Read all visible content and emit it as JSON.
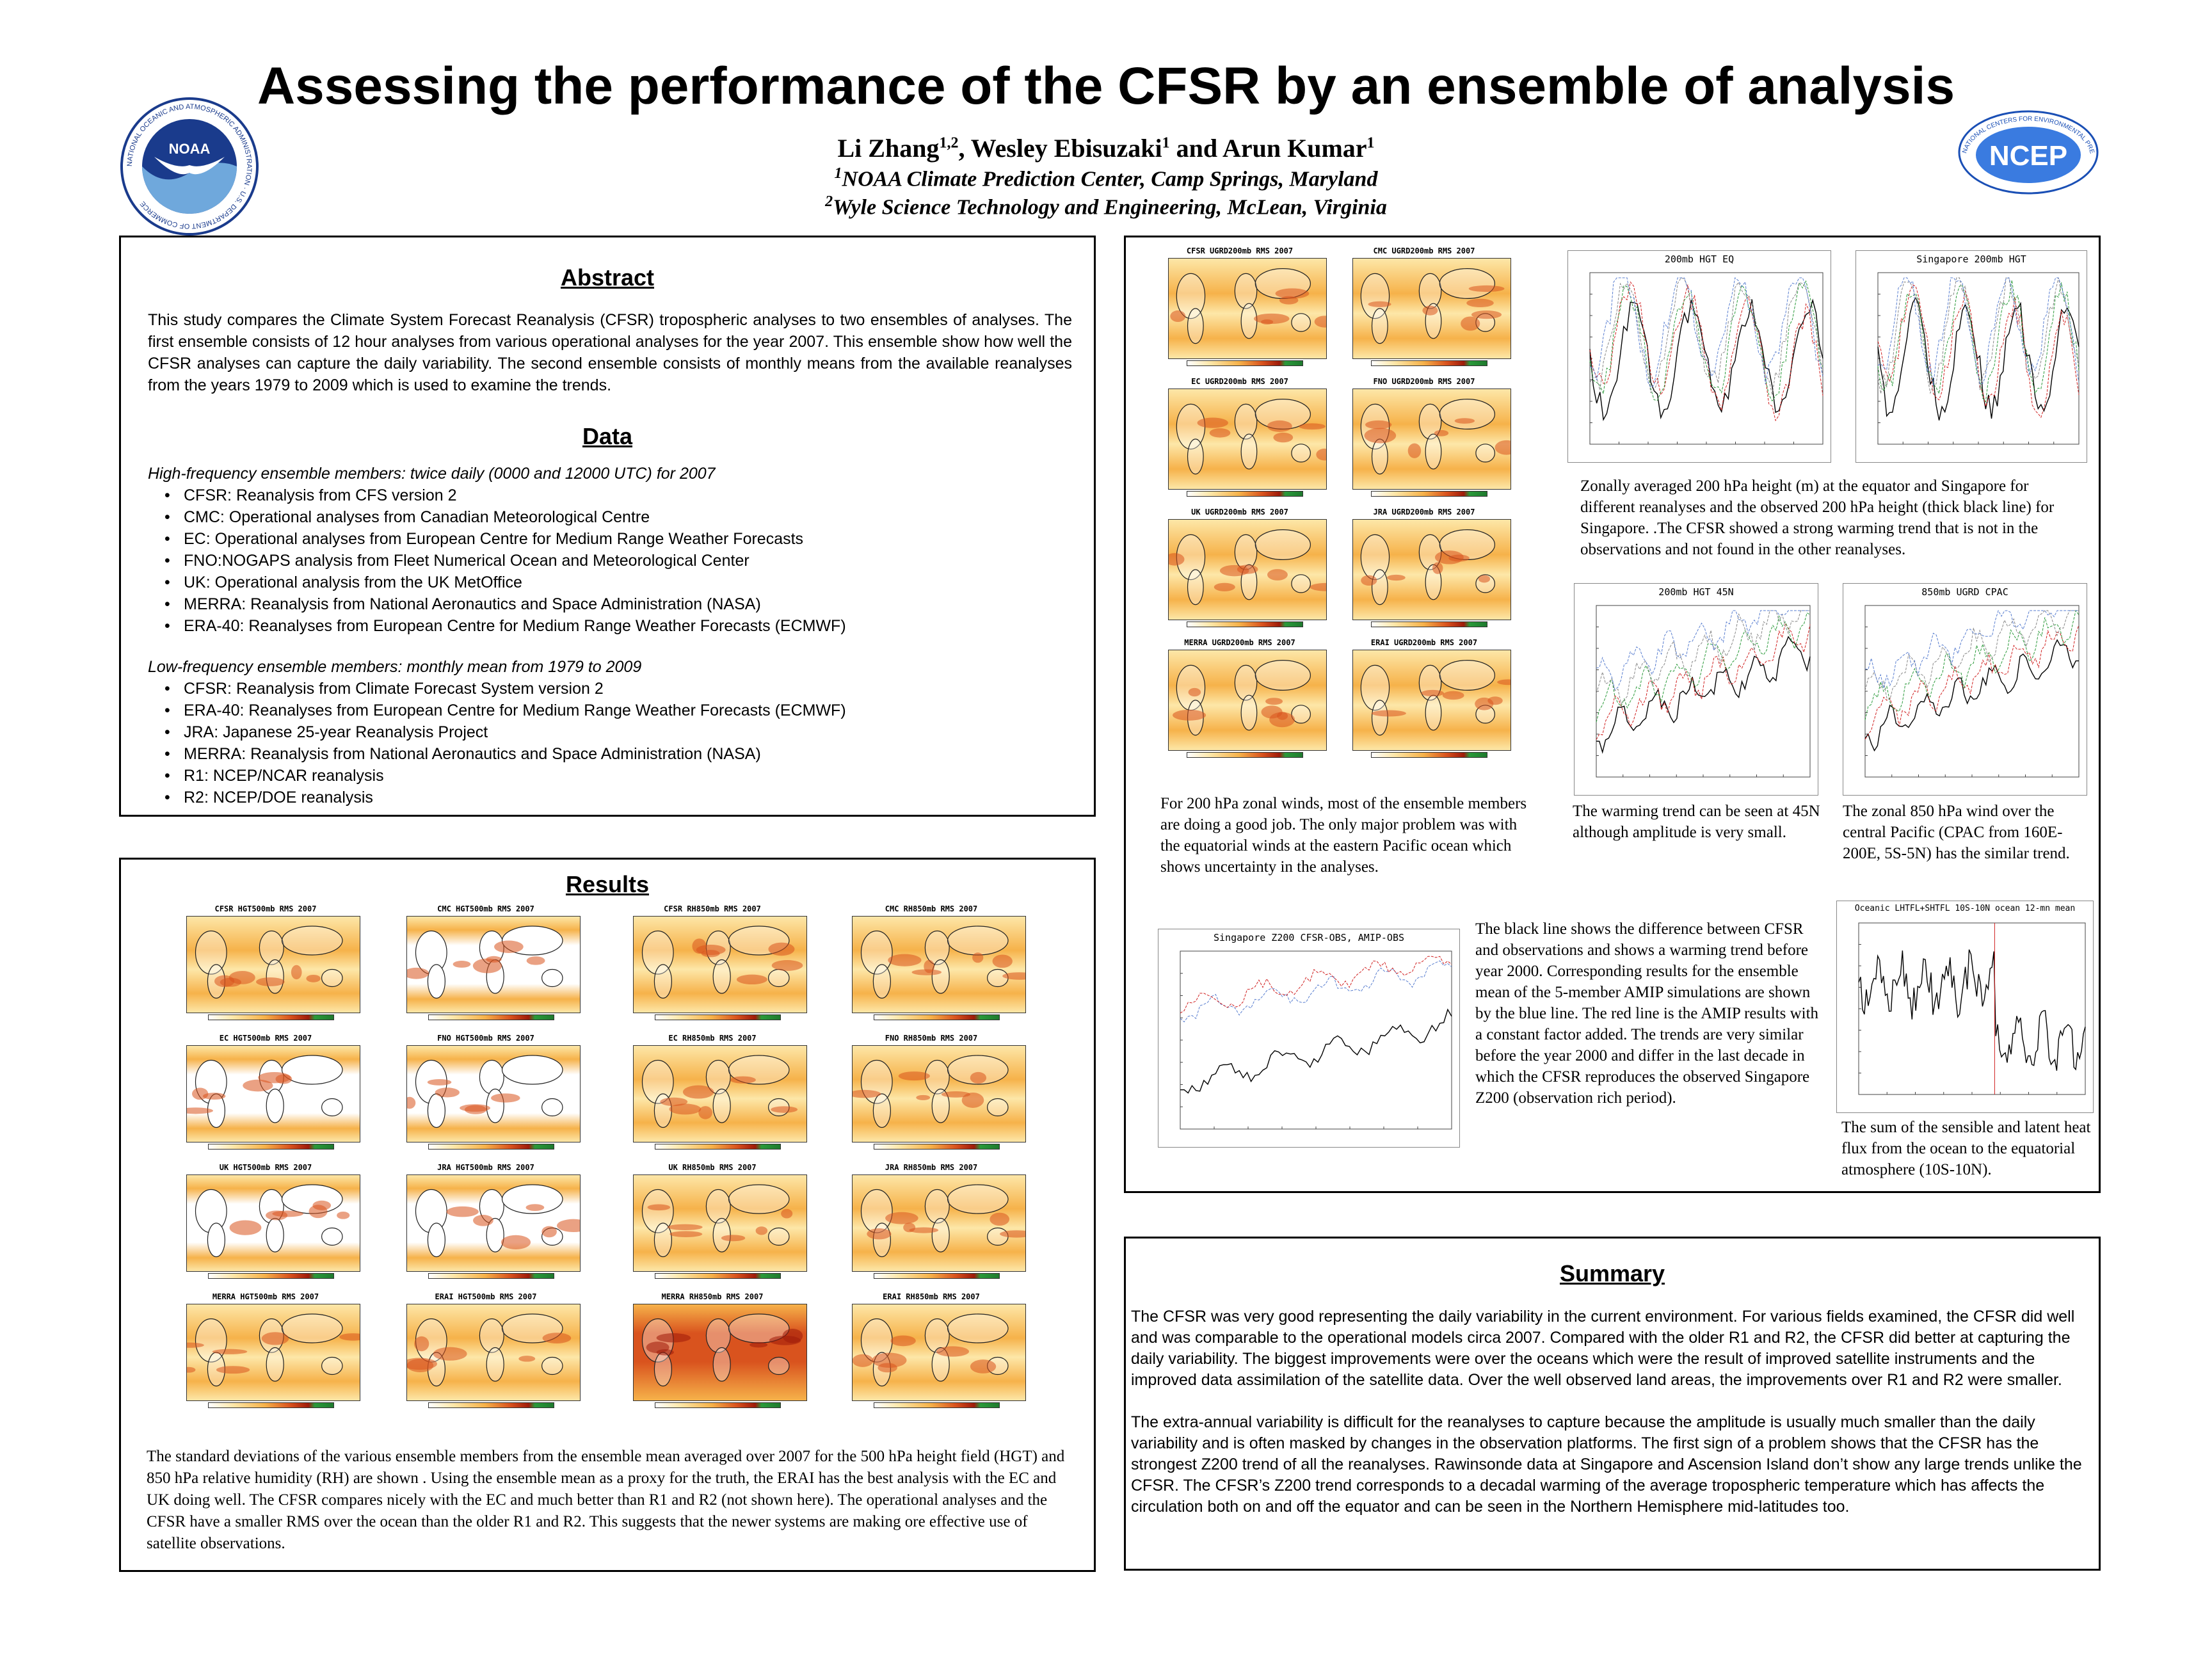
{
  "header": {
    "title": "Assessing the performance of the CFSR by an ensemble of analysis",
    "authors": "Li Zhang1,2, Wesley Ebisuzaki1 and Arun Kumar1",
    "author1": "Li Zhang",
    "author1_sup": "1,2",
    "author2": ", Wesley Ebisuzaki",
    "author2_sup": "1",
    "author3": " and Arun Kumar",
    "author3_sup": "1",
    "affil1_sup": "1",
    "affil1": "NOAA Climate Prediction Center, Camp Springs, Maryland",
    "affil2_sup": "2",
    "affil2": "Wyle Science Technology and Engineering, McLean, Virginia",
    "left_logo_text": "NOAA",
    "left_logo_ring": "NATIONAL OCEANIC AND ATMOSPHERIC ADMINISTRATION · U.S. DEPARTMENT OF COMMERCE",
    "right_logo_text": "NCEP",
    "right_logo_ring": "NATIONAL CENTERS FOR ENVIRONMENTAL PREDICTION"
  },
  "abstract": {
    "heading": "Abstract",
    "text": "This study compares the Climate System Forecast Reanalysis (CFSR) tropospheric analyses to two ensembles of analyses. The first ensemble consists of 12 hour analyses from various operational analyses for the year 2007. This ensemble show how well the CFSR analyses can capture the daily variability. The second ensemble consists of monthly means from the available reanalyses from the years 1979 to 2009 which is used to examine the trends."
  },
  "data_section": {
    "heading": "Data",
    "high_freq_intro": "High-frequency ensemble members: twice daily (0000 and 12000 UTC) for 2007",
    "high_freq_items": [
      "CFSR: Reanalysis from CFS version 2",
      "CMC: Operational analyses from Canadian Meteorological Centre",
      "EC: Operational analyses from European Centre for Medium Range Weather Forecasts",
      "FNO:NOGAPS analysis from Fleet Numerical Ocean and Meteorological Center",
      "UK: Operational analysis from the UK MetOffice",
      "MERRA: Reanalysis from National Aeronautics and Space Administration (NASA)",
      "ERA-40: Reanalyses from European Centre for Medium Range Weather Forecasts (ECMWF)"
    ],
    "low_freq_intro": "Low-frequency ensemble members: monthly mean from 1979 to 2009",
    "low_freq_items": [
      "CFSR: Reanalysis from Climate Forecast System version 2",
      "ERA-40: Reanalyses from European Centre for Medium Range Weather Forecasts (ECMWF)",
      "JRA: Japanese 25-year Reanalysis Project",
      "MERRA: Reanalysis from National Aeronautics and Space Administration (NASA)",
      "R1: NCEP/NCAR reanalysis",
      "R2: NCEP/DOE reanalysis"
    ]
  },
  "results": {
    "heading": "Results",
    "maps": [
      [
        "CFSR HGT500mb RMS 2007",
        "CMC HGT500mb RMS 2007",
        "CFSR RH850mb RMS 2007",
        "CMC RH850mb RMS 2007"
      ],
      [
        "EC HGT500mb RMS 2007",
        "FNO HGT500mb RMS 2007",
        "EC RH850mb RMS 2007",
        "FNO RH850mb RMS 2007"
      ],
      [
        "UK HGT500mb RMS 2007",
        "JRA HGT500mb RMS 2007",
        "UK RH850mb RMS 2007",
        "JRA RH850mb RMS 2007"
      ],
      [
        "MERRA HGT500mb RMS 2007",
        "ERAI HGT500mb RMS 2007",
        "MERRA RH850mb RMS 2007",
        "ERAI RH850mb RMS 2007"
      ]
    ],
    "caption": "The standard deviations of the various ensemble members from the ensemble mean averaged over 2007 for the 500 hPa height field (HGT) and 850 hPa  relative humidity (RH)  are shown .  Using the ensemble mean as a proxy for the truth, the ERAI has the best analysis with the EC and UK doing well. The CFSR compares nicely with the EC and much better than R1 and R2 (not shown here). The operational analyses and the CFSR have a smaller RMS over the ocean than the older R1 and R2. This suggests that the newer systems are making ore effective use of satellite observations."
  },
  "right_top": {
    "wind_maps": [
      [
        "CFSR UGRD200mb RMS 2007",
        "CMC UGRD200mb RMS 2007"
      ],
      [
        "EC UGRD200mb RMS 2007",
        "FNO UGRD200mb RMS 2007"
      ],
      [
        "UK UGRD200mb RMS 2007",
        "JRA UGRD200mb RMS 2007"
      ],
      [
        "MERRA UGRD200mb RMS 2007",
        "ERAI UGRD200mb RMS 2007"
      ]
    ],
    "wind_caption": "For 200 hPa zonal winds, most of the ensemble members are doing a good job. The only major problem was with the equatorial winds at the eastern Pacific ocean which shows uncertainty in the analyses.",
    "plot_eq_title": "200mb HGT EQ",
    "plot_sing_title": "Singapore 200mb HGT",
    "plots_top_caption": "Zonally averaged 200 hPa height (m) at the equator and Singapore for different reanalyses and the observed 200 hPa height (thick black line) for Singapore. .The CFSR showed a strong warming trend that is not in the observations and not found in the other reanalyses.",
    "plot_45n_title": "200mb HGT 45N",
    "plot_cpac_title": "850mb UGRD CPAC",
    "caption_45n": "The warming trend can be seen at 45N although amplitude is very small.",
    "caption_cpac": "The zonal 850 hPa wind over the central Pacific (CPAC from 160E-200E, 5S-5N) has the similar trend.",
    "plot_z200_title": "Singapore Z200 CFSR-OBS, AMIP-OBS",
    "caption_z200": "The black line shows the difference between CFSR and observations and shows a warming trend before year 2000. Corresponding results for the ensemble mean of the 5-member AMIP simulations are shown by the blue line. The red line is the AMIP results with a constant factor added. The trends are very similar before the year 2000 and differ in the last decade in which the CFSR reproduces the observed Singapore Z200 (observation rich period).",
    "plot_flux_title": "Oceanic LHTFL+SHTFL 10S-10N ocean 12-mn mean",
    "caption_flux": "The sum of the sensible and latent heat flux from the ocean to the equatorial atmosphere (10S-10N)."
  },
  "summary": {
    "heading": "Summary",
    "p1": "The CFSR was very good representing the daily variability in the current environment. For various fields examined, the CFSR did well and was comparable to the operational models circa 2007.  Compared with the older R1 and R2, the CFSR did better at capturing the daily variability. The biggest improvements were over the oceans which were the result of improved satellite instruments and the improved data assimilation of the satellite data. Over the well observed land areas, the improvements over R1 and R2 were smaller.",
    "p2": "The extra-annual variability is difficult for the reanalyses to capture because the amplitude is usually much smaller than the daily variability and is often masked by changes in the observation platforms. The first sign of a problem shows that the CFSR has the strongest Z200 trend of all the reanalyses. Rawinsonde data at Singapore and Ascension Island don’t show any large trends unlike the CFSR. The CFSR’s Z200 trend corresponds to a decadal warming of the average tropospheric temperature which has affects the circulation both on and off the equator and can be seen in the Northern Hemisphere mid-latitudes too."
  },
  "colors": {
    "map_light": "#fde7a8",
    "map_mid": "#f6b24a",
    "map_dark": "#d9531e",
    "map_darkest": "#9e1a0a"
  }
}
